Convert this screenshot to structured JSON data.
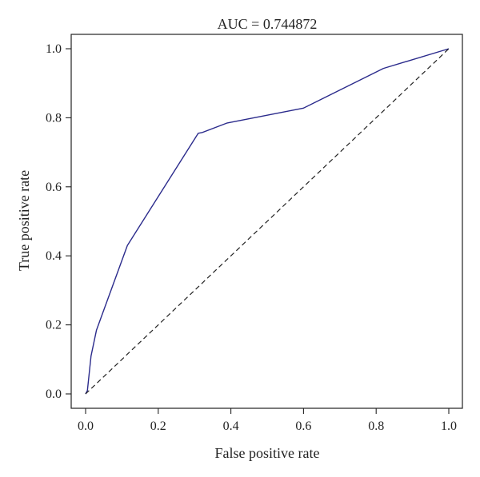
{
  "chart_data": {
    "type": "line",
    "title": "AUC = 0.744872",
    "xlabel": "False positive rate",
    "ylabel": "True positive rate",
    "xlim": [
      0,
      1
    ],
    "ylim": [
      0,
      1
    ],
    "x_ticks": [
      "0.0",
      "0.2",
      "0.4",
      "0.6",
      "0.8",
      "1.0"
    ],
    "y_ticks": [
      "0.0",
      "0.2",
      "0.4",
      "0.6",
      "0.8",
      "1.0"
    ],
    "grid": false,
    "legend": "none",
    "series": [
      {
        "style": "solid",
        "color": "#2b2b8c",
        "x": [
          0.0,
          0.005,
          0.015,
          0.03,
          0.115,
          0.31,
          0.32,
          0.39,
          0.6,
          0.82,
          1.0
        ],
        "y": [
          0.0,
          0.01,
          0.11,
          0.185,
          0.43,
          0.755,
          0.757,
          0.785,
          0.828,
          0.943,
          1.0
        ]
      },
      {
        "style": "dashed",
        "color": "#222222",
        "x": [
          0.0,
          1.0
        ],
        "y": [
          0.0,
          1.0
        ]
      }
    ]
  }
}
